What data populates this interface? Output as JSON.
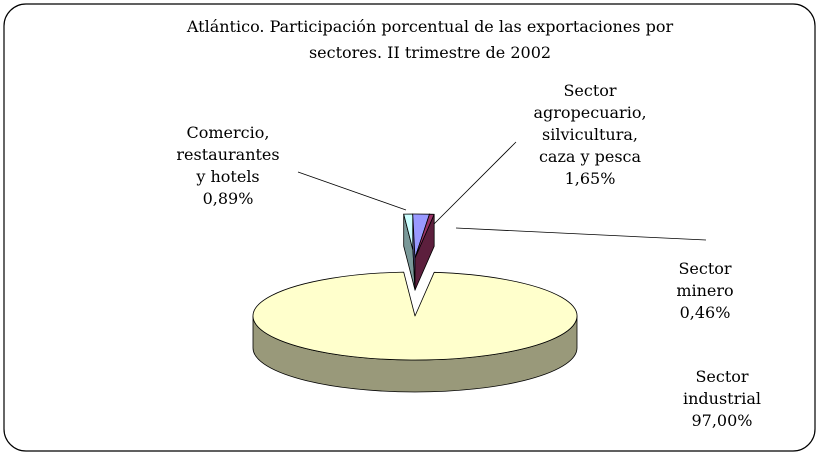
{
  "chart_data": {
    "type": "pie",
    "title": "Atlántico. Participación porcentual de las exportaciones por\nsectores. II trimestre de 2002",
    "categories": [
      "Comercio,\nrestaurantes\ny hotels",
      "Sector\nagropecuario,\nsilvicultura,\ncaza y pesca",
      "Sector minero",
      "Sector\nindustrial"
    ],
    "values": [
      0.89,
      1.65,
      0.46,
      97.0
    ],
    "value_labels": [
      "0,89%",
      "1,65%",
      "0,46%",
      "97,00%"
    ],
    "colors": [
      "#ccffff",
      "#9999ff",
      "#993366",
      "#ffffcc"
    ]
  }
}
